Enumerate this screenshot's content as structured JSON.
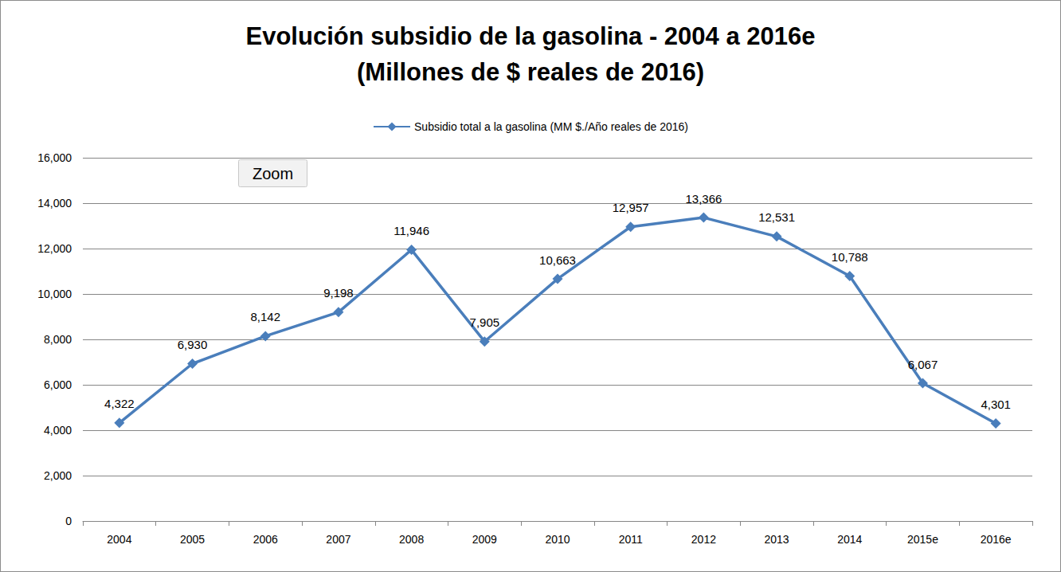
{
  "chart_data": {
    "type": "line",
    "title": "Evolución subsidio de la gasolina - 2004 a 2016e",
    "subtitle": "(Millones de $ reales de 2016)",
    "annotations": [
      "Zoom"
    ],
    "categories": [
      "2004",
      "2005",
      "2006",
      "2007",
      "2008",
      "2009",
      "2010",
      "2011",
      "2012",
      "2013",
      "2014",
      "2015e",
      "2016e"
    ],
    "series": [
      {
        "name": "Subsidio total a la gasolina (MM $./Año reales de 2016)",
        "color": "#4a7ebb",
        "marker": "diamond",
        "values": [
          4322,
          6930,
          8142,
          9198,
          11946,
          7905,
          10663,
          12957,
          13366,
          12531,
          10788,
          6067,
          4301
        ],
        "value_labels": [
          "4,322",
          "6,930",
          "8,142",
          "9,198",
          "11,946",
          "7,905",
          "10,663",
          "12,957",
          "13,366",
          "12,531",
          "10,788",
          "6,067",
          "4,301"
        ]
      }
    ],
    "ylim": [
      0,
      16000
    ],
    "yticks": [
      0,
      {
        "value": 2000,
        "label": "2,000"
      },
      {
        "value": 4000,
        "label": "4,000"
      },
      {
        "value": 6000,
        "label": "6,000"
      },
      {
        "value": 8000,
        "label": "8,000"
      },
      {
        "value": 10000,
        "label": "10,000"
      },
      {
        "value": 12000,
        "label": "12,000"
      },
      {
        "value": 14000,
        "label": "14,000"
      },
      {
        "value": 16000,
        "label": "16,000"
      }
    ],
    "grid": true,
    "legend": "top",
    "data_labels": true
  }
}
